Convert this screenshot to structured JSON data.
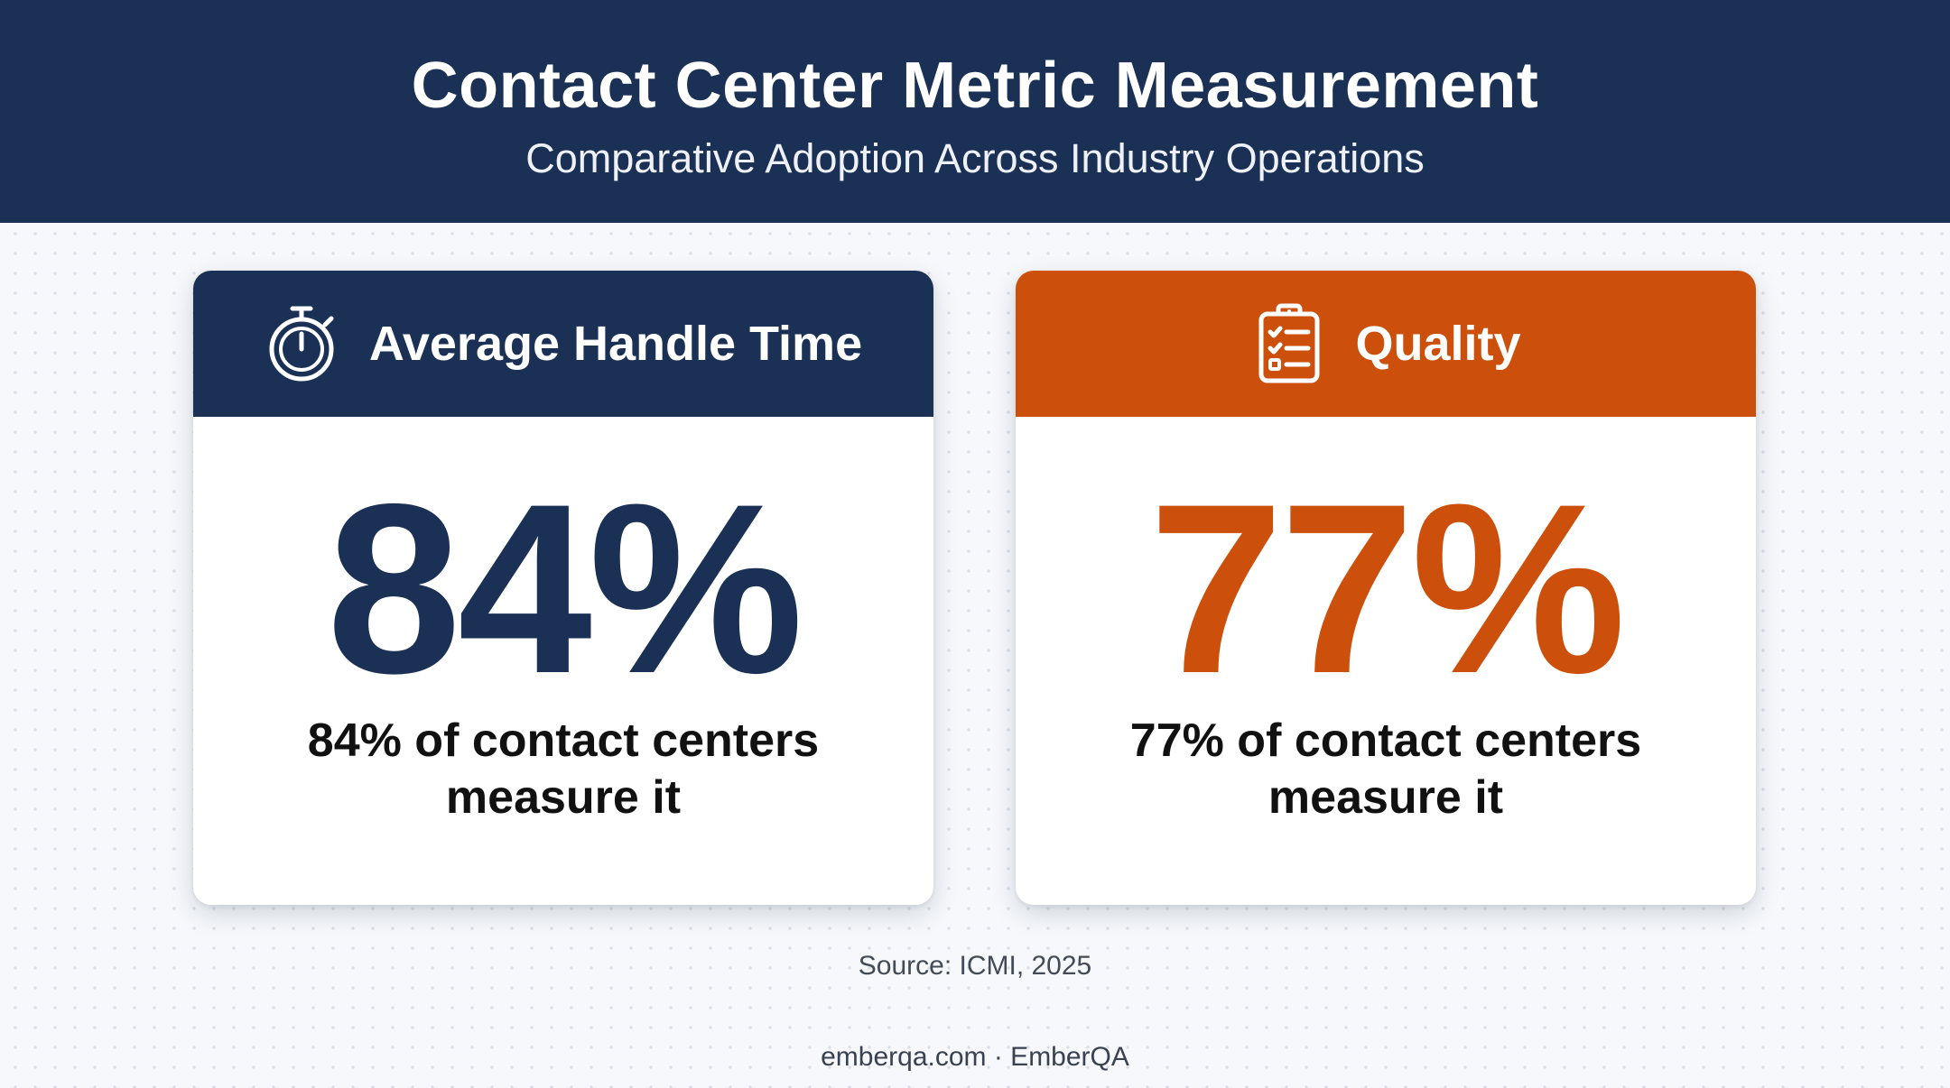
{
  "header": {
    "title": "Contact Center Metric Measurement",
    "subtitle": "Comparative Adoption Across Industry Operations"
  },
  "cards": [
    {
      "title": "Average Handle Time",
      "icon": "stopwatch-icon",
      "value": "84%",
      "percent": 84,
      "description_line1": "84% of contact centers",
      "description_line2": "measure it",
      "accent_color": "#1b3055"
    },
    {
      "title": "Quality",
      "icon": "clipboard-checklist-icon",
      "value": "77%",
      "percent": 77,
      "description_line1": "77% of contact centers",
      "description_line2": "measure it",
      "accent_color": "#cc4f0c"
    }
  ],
  "source": "Source: ICMI, 2025",
  "footer": "emberqa.com · EmberQA",
  "colors": {
    "navy": "#1b3055",
    "orange": "#cc4f0c",
    "background": "#f6f8fb"
  }
}
